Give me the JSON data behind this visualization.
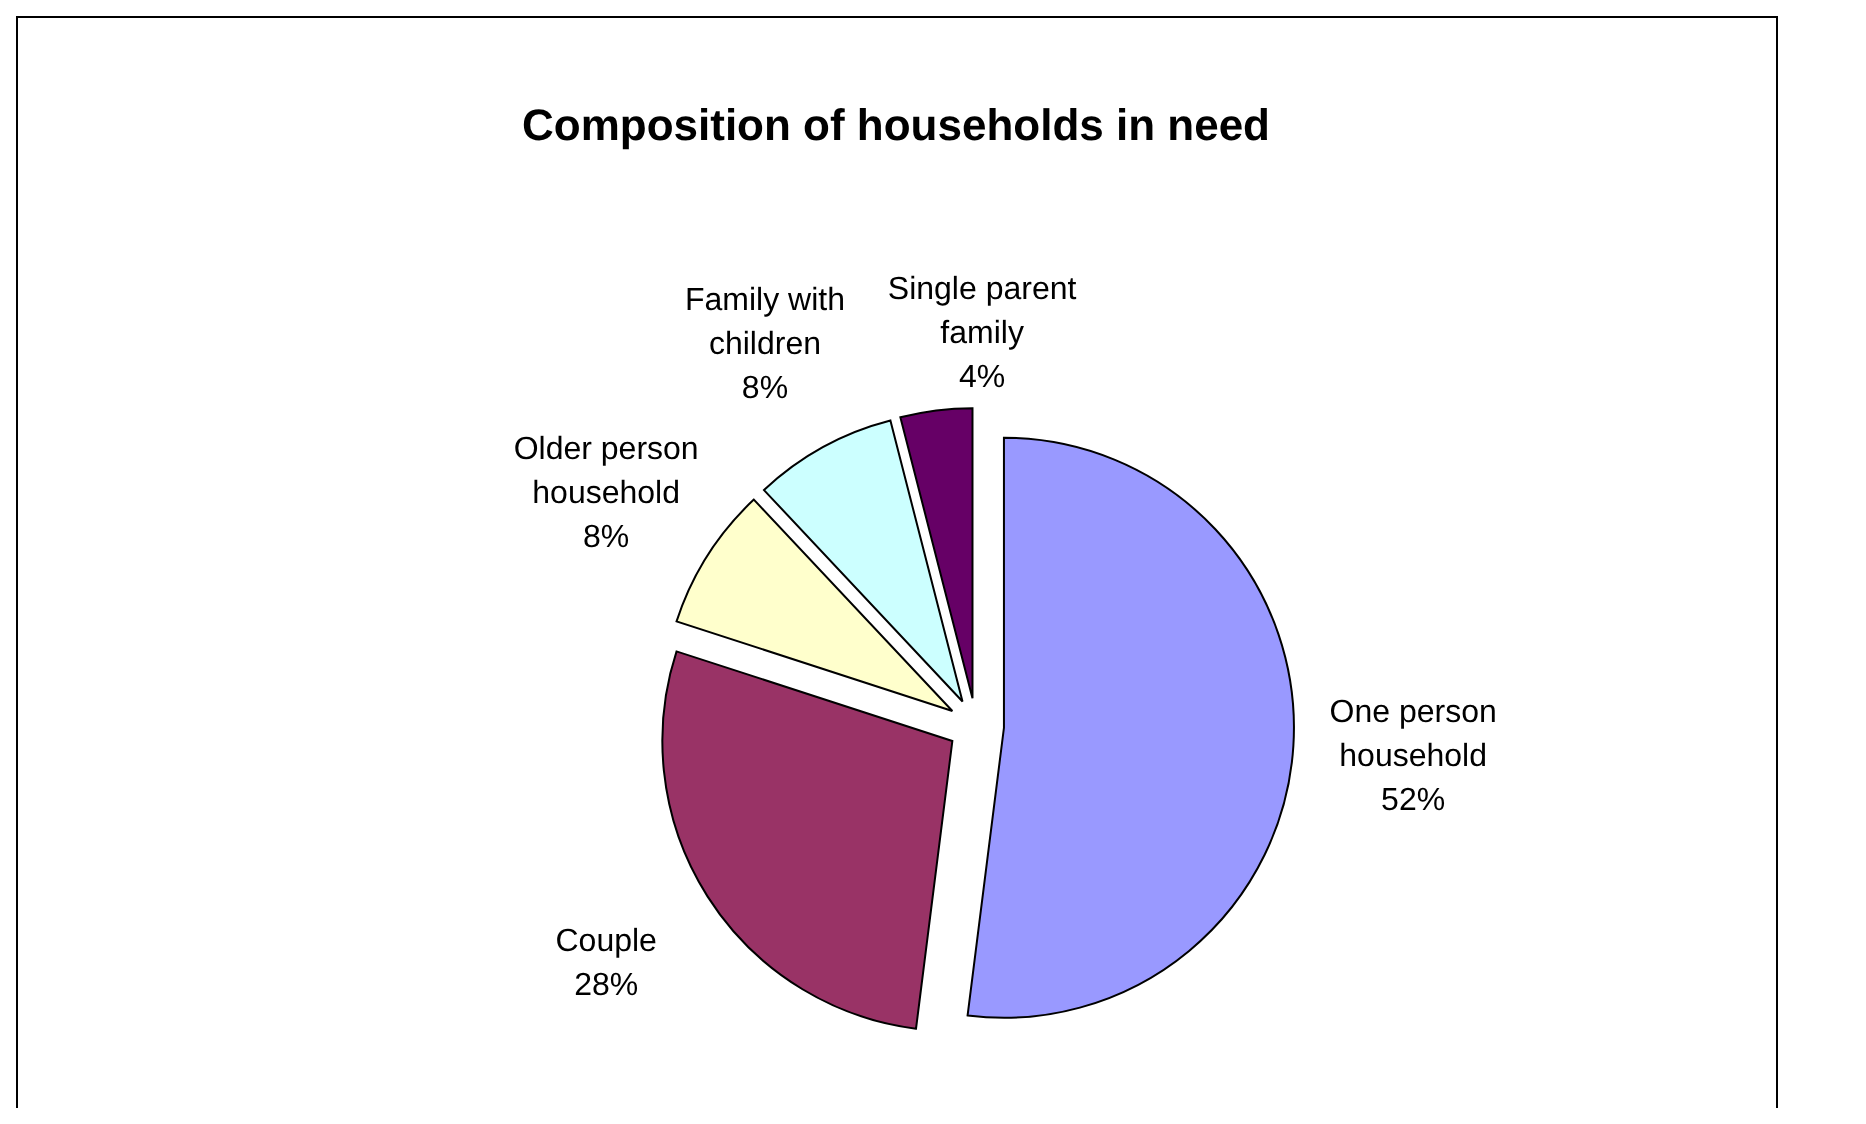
{
  "chart_data": {
    "type": "pie",
    "title": "Composition of households in need",
    "categories": [
      "One person household",
      "Couple",
      "Older person household",
      "Family with children",
      "Single parent family"
    ],
    "values": [
      52,
      28,
      8,
      8,
      4
    ],
    "colors": [
      "#9999ff",
      "#993366",
      "#ffffcc",
      "#ccffff",
      "#660066"
    ],
    "value_labels": [
      "52%",
      "28%",
      "8%",
      "8%",
      "4%"
    ]
  }
}
